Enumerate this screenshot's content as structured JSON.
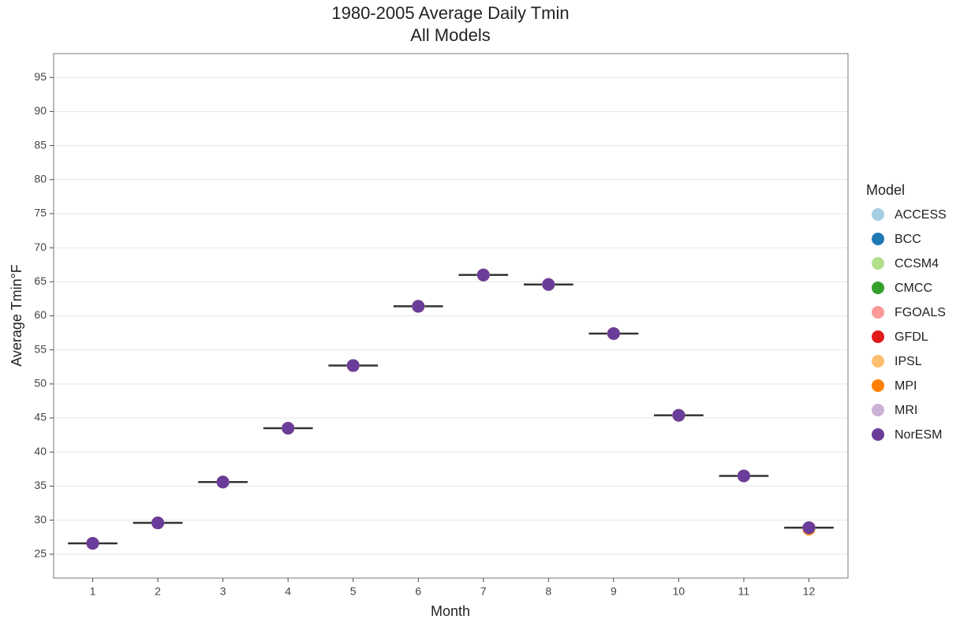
{
  "chart_data": {
    "type": "dot",
    "title": "1980-2005 Average Daily Tmin",
    "subtitle": "All Models",
    "x_label": "Month",
    "y_label": "Average Tmin°F",
    "legend_title": "Model",
    "legend_position": "right",
    "grid": true,
    "categories": [
      1,
      2,
      3,
      4,
      5,
      6,
      7,
      8,
      9,
      10,
      11,
      12
    ],
    "median": [
      26.6,
      29.6,
      35.6,
      43.5,
      52.7,
      61.4,
      66.0,
      64.6,
      57.4,
      45.4,
      36.5,
      28.9
    ],
    "median_color": "#333333",
    "series": [
      {
        "name": "ACCESS",
        "color": "#a6cee3",
        "values": [
          26.6,
          29.6,
          35.6,
          43.5,
          52.7,
          61.4,
          66.0,
          64.6,
          57.4,
          45.4,
          36.5,
          28.9
        ]
      },
      {
        "name": "BCC",
        "color": "#1f78b4",
        "values": [
          26.6,
          29.6,
          35.6,
          43.5,
          52.7,
          61.4,
          66.0,
          64.6,
          57.4,
          45.4,
          36.5,
          28.9
        ]
      },
      {
        "name": "CCSM4",
        "color": "#b2df8a",
        "values": [
          26.6,
          29.6,
          35.6,
          43.5,
          52.7,
          61.4,
          66.0,
          64.6,
          57.4,
          45.4,
          36.5,
          28.9
        ]
      },
      {
        "name": "CMCC",
        "color": "#33a02c",
        "values": [
          26.6,
          29.6,
          35.6,
          43.5,
          52.7,
          61.4,
          66.0,
          64.6,
          57.4,
          45.4,
          36.5,
          28.9
        ]
      },
      {
        "name": "FGOALS",
        "color": "#fb9a99",
        "values": [
          26.6,
          29.6,
          35.6,
          43.5,
          52.7,
          61.4,
          66.0,
          64.6,
          57.4,
          45.4,
          36.5,
          28.9
        ]
      },
      {
        "name": "GFDL",
        "color": "#e31a1c",
        "values": [
          26.6,
          29.6,
          35.6,
          43.5,
          52.7,
          61.4,
          66.0,
          64.6,
          57.4,
          45.4,
          36.5,
          28.9
        ]
      },
      {
        "name": "IPSL",
        "color": "#fdbf6f",
        "values": [
          26.6,
          29.6,
          35.6,
          43.5,
          52.7,
          61.4,
          66.0,
          64.6,
          57.4,
          45.4,
          36.5,
          28.7
        ]
      },
      {
        "name": "MPI",
        "color": "#ff7f00",
        "values": [
          26.6,
          29.6,
          35.6,
          43.5,
          52.7,
          61.4,
          66.0,
          64.6,
          57.4,
          45.4,
          36.5,
          28.7
        ]
      },
      {
        "name": "MRI",
        "color": "#cab2d6",
        "values": [
          26.6,
          29.6,
          35.6,
          43.5,
          52.7,
          61.4,
          66.0,
          64.6,
          57.4,
          45.4,
          36.5,
          28.9
        ]
      },
      {
        "name": "NorESM",
        "color": "#6a3d9a",
        "values": [
          26.6,
          29.6,
          35.6,
          43.5,
          52.7,
          61.4,
          66.0,
          64.6,
          57.4,
          45.4,
          36.5,
          28.9
        ]
      }
    ],
    "ylim": [
      21.5,
      98.5
    ],
    "yticks": [
      25,
      30,
      35,
      40,
      45,
      50,
      55,
      60,
      65,
      70,
      75,
      80,
      85,
      90,
      95
    ]
  }
}
